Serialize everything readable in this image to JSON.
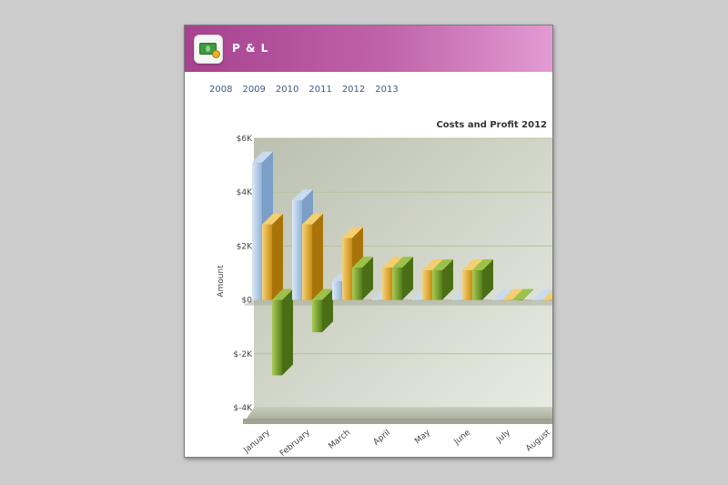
{
  "app": {
    "title": "P & L",
    "icon": "money-icon"
  },
  "year_tabs": [
    "2008",
    "2009",
    "2010",
    "2011",
    "2012",
    "2013"
  ],
  "colors": {
    "header_start": "#a6428f",
    "header_end": "#e29bd3",
    "link": "#3c5a86",
    "series_light_blue": "#a9c8e6",
    "series_gold": "#e6a826",
    "series_green": "#6e9a26"
  },
  "chart_data": {
    "type": "bar",
    "title": "Costs and Profit 2012",
    "ylabel": "Amount",
    "xlabel": "",
    "ylim": [
      -4000,
      6000
    ],
    "yticks": [
      {
        "value": 6000,
        "label": "$6K"
      },
      {
        "value": 4000,
        "label": "$4K"
      },
      {
        "value": 2000,
        "label": "$2K"
      },
      {
        "value": 0,
        "label": "$0"
      },
      {
        "value": -2000,
        "label": "$-2K"
      },
      {
        "value": -4000,
        "label": "$-4K"
      }
    ],
    "categories": [
      "January",
      "February",
      "March",
      "April",
      "May",
      "June",
      "July",
      "August"
    ],
    "series": [
      {
        "values": [
          5100,
          3700,
          700,
          0,
          0,
          0,
          0,
          0
        ]
      },
      {
        "values": [
          2800,
          2800,
          2300,
          1200,
          1100,
          1100,
          0,
          0
        ]
      },
      {
        "values": [
          -2800,
          -1200,
          1200,
          1200,
          1100,
          1100,
          0,
          0
        ]
      }
    ],
    "grid": true,
    "legend": "none"
  }
}
